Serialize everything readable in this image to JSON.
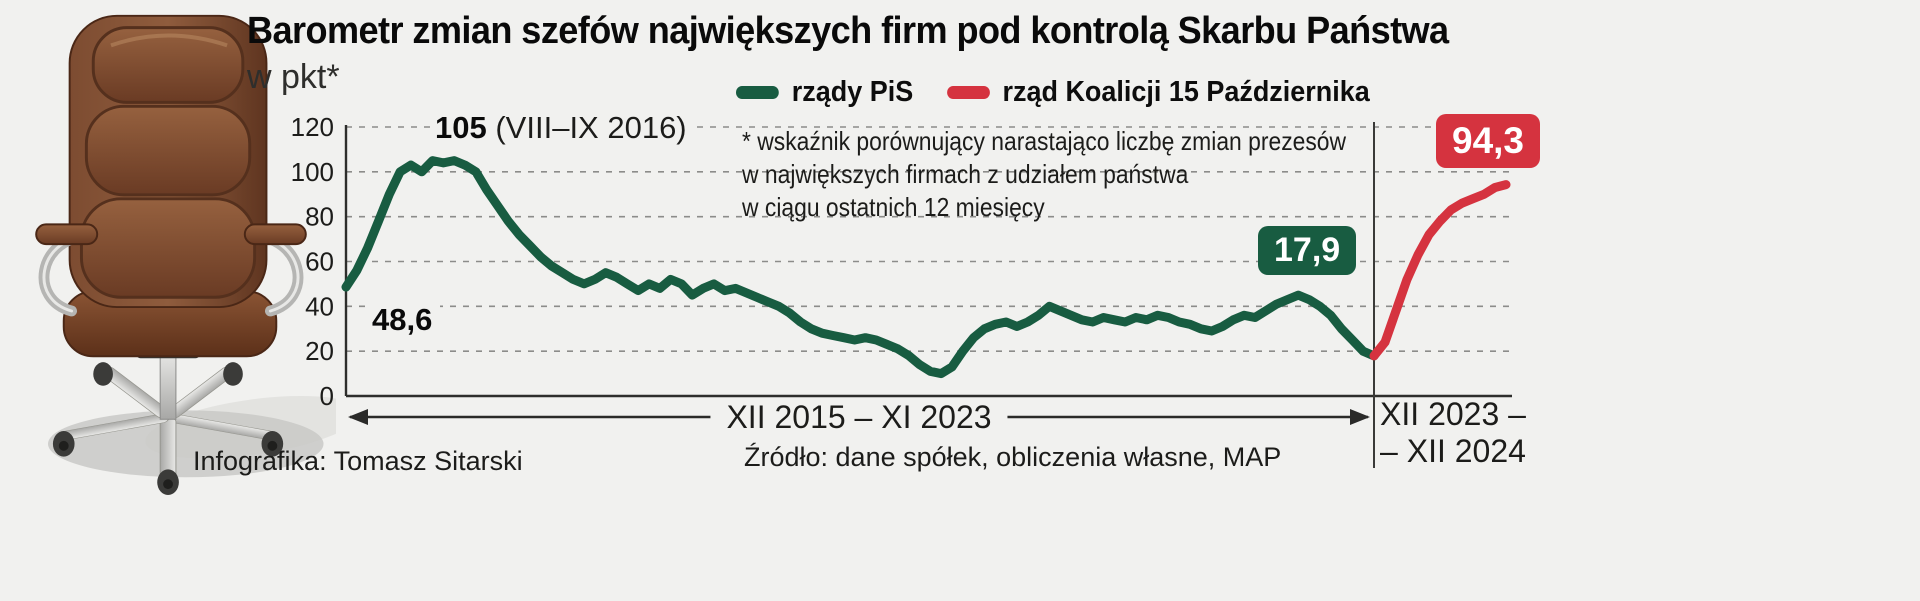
{
  "page": {
    "background": "#f1f1ef"
  },
  "header": {
    "title": "Barometr zmian szefów największych firm pod kontrolą Skarbu Państwa",
    "subtitle": "w pkt*"
  },
  "legend": {
    "items": [
      {
        "label": "rządy PiS",
        "color": "#185c41"
      },
      {
        "label": "rząd Koalicji 15 Października",
        "color": "#d5333f"
      }
    ]
  },
  "callouts": {
    "start_value": "48,6",
    "peak_value": "105",
    "peak_period": "(VIII–IX 2016)",
    "green_end_value": "17,9",
    "red_end_value": "94,3"
  },
  "footnote": {
    "lines": [
      "* wskaźnik porównujący narastająco liczbę zmian prezesów",
      "w największych firmach z udziałem państwa",
      "w ciągu ostatnich 12 miesięcy"
    ]
  },
  "x_axis": {
    "left_range_label": "XII 2015 – XI 2023",
    "right_range_line1": "XII 2023 –",
    "right_range_line2": "– XII 2024"
  },
  "footer": {
    "credit": "Infografika: Tomasz Sitarski",
    "source": "Źródło: dane spółek, obliczenia własne, MAP"
  },
  "chart_data": {
    "type": "line",
    "title": "Barometr zmian szefów największych firm pod kontrolą Skarbu Państwa",
    "ylabel": "pkt",
    "ylim": [
      0,
      120
    ],
    "yticks": [
      120,
      100,
      80,
      60,
      40,
      20,
      0
    ],
    "grid": "horizontal dashed",
    "legend_position": "top",
    "series": [
      {
        "name": "rządy PiS",
        "color": "#185c41",
        "period_start": "XII 2015",
        "period_end": "XI 2023",
        "start_value": 48.6,
        "peak": {
          "value": 105,
          "period": "VIII–IX 2016"
        },
        "end_value": 17.9,
        "values": [
          48.6,
          56,
          66,
          78,
          90,
          100,
          103,
          100,
          105,
          104,
          105,
          103,
          100,
          92,
          85,
          78,
          72,
          67,
          62,
          58,
          55,
          52,
          50,
          52,
          55,
          53,
          50,
          47,
          50,
          48,
          52,
          50,
          45,
          48,
          50,
          47,
          48,
          46,
          44,
          42,
          40,
          37,
          33,
          30,
          28,
          27,
          26,
          25,
          26,
          25,
          23,
          21,
          18,
          14,
          11,
          10,
          13,
          20,
          26,
          30,
          32,
          33,
          31,
          33,
          36,
          40,
          38,
          36,
          34,
          33,
          35,
          34,
          33,
          35,
          34,
          36,
          35,
          33,
          32,
          30,
          29,
          31,
          34,
          36,
          35,
          38,
          41,
          43,
          45,
          43,
          40,
          36,
          30,
          25,
          20,
          17.9
        ]
      },
      {
        "name": "rząd Koalicji 15 Października",
        "color": "#d5333f",
        "period_start": "XII 2023",
        "period_end": "XII 2024",
        "end_value": 94.3,
        "values": [
          17.9,
          24,
          38,
          52,
          63,
          72,
          78,
          83,
          86,
          88,
          90,
          93,
          94.3
        ]
      }
    ],
    "annotations": {
      "start_value": 48.6,
      "peak": {
        "value": 105,
        "period": "VIII–IX 2016"
      },
      "pis_end_value": 17.9,
      "coalition_end_value": 94.3
    }
  }
}
